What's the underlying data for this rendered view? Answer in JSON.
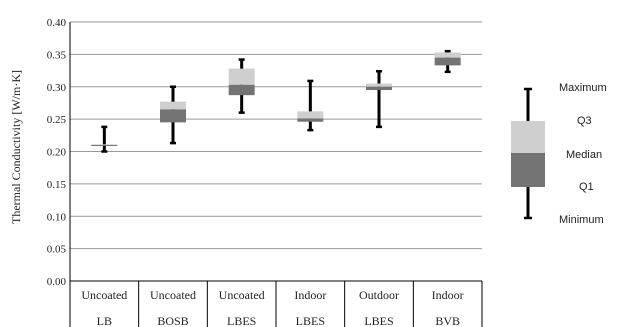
{
  "chart_data": {
    "type": "box",
    "ylabel": "Thermal Conductivity [W/m·K]",
    "ylim": [
      0,
      0.4
    ],
    "ytick_step": 0.05,
    "ytick_labels": [
      "0.00",
      "0.05",
      "0.10",
      "0.15",
      "0.20",
      "0.25",
      "0.30",
      "0.35",
      "0.40"
    ],
    "grid": true,
    "categories": [
      {
        "line1": "Uncoated",
        "line2": "LB"
      },
      {
        "line1": "Uncoated",
        "line2": "BOSB"
      },
      {
        "line1": "Uncoated",
        "line2": "LBES"
      },
      {
        "line1": "Indoor",
        "line2": "LBES"
      },
      {
        "line1": "Outdoor",
        "line2": "LBES"
      },
      {
        "line1": "Indoor",
        "line2": "BVB"
      }
    ],
    "series": [
      {
        "min": 0.2,
        "q1": 0.209,
        "median": 0.21,
        "q3": 0.211,
        "max": 0.238
      },
      {
        "min": 0.213,
        "q1": 0.245,
        "median": 0.265,
        "q3": 0.277,
        "max": 0.3
      },
      {
        "min": 0.26,
        "q1": 0.287,
        "median": 0.303,
        "q3": 0.328,
        "max": 0.342
      },
      {
        "min": 0.233,
        "q1": 0.246,
        "median": 0.251,
        "q3": 0.262,
        "max": 0.309
      },
      {
        "min": 0.238,
        "q1": 0.295,
        "median": 0.3,
        "q3": 0.305,
        "max": 0.324
      },
      {
        "min": 0.323,
        "q1": 0.333,
        "median": 0.345,
        "q3": 0.353,
        "max": 0.355
      }
    ],
    "colors": {
      "upper_box": "#cfcfcf",
      "lower_box": "#737373",
      "whisker": "#000000",
      "grid": "#9a9a9a"
    },
    "legend": {
      "position": "right",
      "labels": {
        "maximum": "Maximum",
        "q3": "Q3",
        "median": "Median",
        "q1": "Q1",
        "minimum": "Minimum"
      }
    }
  }
}
